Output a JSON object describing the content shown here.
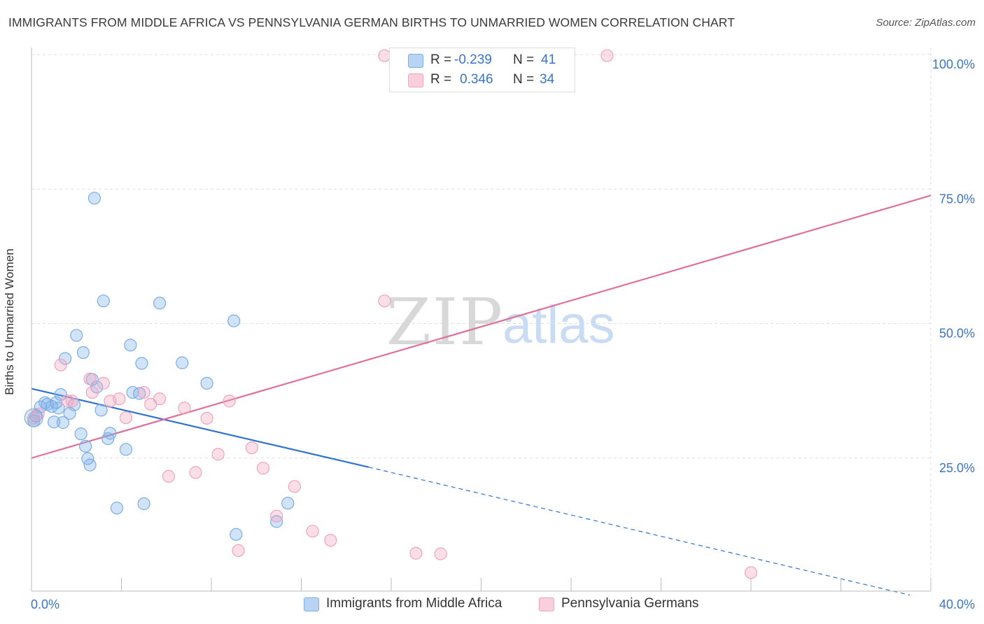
{
  "title": "IMMIGRANTS FROM MIDDLE AFRICA VS PENNSYLVANIA GERMAN BIRTHS TO UNMARRIED WOMEN CORRELATION CHART",
  "source": "Source: ZipAtlas.com",
  "watermark": {
    "zip": "ZIP",
    "atlas": "atlas"
  },
  "legend": {
    "rows": [
      {
        "r_label": "R =",
        "r_value": "-0.239",
        "n_label": "N =",
        "n_value": "41",
        "color": "#7aaee8"
      },
      {
        "r_label": "R =",
        "r_value": "0.346",
        "n_label": "N =",
        "n_value": "34",
        "color": "#f2a3bd"
      }
    ]
  },
  "chart_data": {
    "type": "scatter",
    "xlabel": "",
    "ylabel": "Births to Unmarried Women",
    "xlim": [
      0,
      40
    ],
    "ylim": [
      0,
      100
    ],
    "x_tick_labels": [
      "0.0%",
      "40.0%"
    ],
    "y_tick_labels": [
      "25.0%",
      "50.0%",
      "75.0%",
      "100.0%"
    ],
    "y_ticks": [
      25,
      50,
      75,
      100
    ],
    "grid": true,
    "legend_placement": "bottom",
    "series": [
      {
        "name": "Immigrants from Middle Africa",
        "color": "#7aaee8",
        "line_color": "#2e73d0",
        "trend": {
          "x0": 0,
          "y0": 37.9,
          "x1": 15,
          "y1": 23.3,
          "dashed_to_x": 40,
          "dashed_to_y": -1
        },
        "points": [
          [
            0.2,
            32.8
          ],
          [
            0.4,
            34.5
          ],
          [
            0.6,
            35.3
          ],
          [
            0.7,
            35.0
          ],
          [
            0.9,
            34.6
          ],
          [
            1.0,
            31.7
          ],
          [
            1.1,
            35.3
          ],
          [
            1.2,
            34.3
          ],
          [
            1.3,
            36.8
          ],
          [
            1.4,
            31.6
          ],
          [
            1.5,
            43.5
          ],
          [
            1.7,
            33.3
          ],
          [
            1.9,
            34.9
          ],
          [
            2.0,
            47.8
          ],
          [
            2.2,
            29.5
          ],
          [
            2.3,
            44.6
          ],
          [
            2.4,
            27.2
          ],
          [
            2.5,
            24.9
          ],
          [
            2.6,
            23.7
          ],
          [
            2.7,
            39.6
          ],
          [
            2.8,
            73.3
          ],
          [
            2.9,
            38.2
          ],
          [
            3.1,
            33.9
          ],
          [
            3.2,
            54.2
          ],
          [
            3.4,
            28.6
          ],
          [
            3.5,
            29.6
          ],
          [
            3.8,
            15.7
          ],
          [
            4.2,
            26.6
          ],
          [
            4.4,
            46.0
          ],
          [
            4.5,
            37.2
          ],
          [
            4.8,
            37.0
          ],
          [
            4.9,
            42.6
          ],
          [
            5.0,
            16.5
          ],
          [
            5.7,
            53.8
          ],
          [
            6.7,
            42.7
          ],
          [
            7.8,
            38.9
          ],
          [
            9.0,
            50.5
          ],
          [
            9.1,
            10.8
          ],
          [
            10.9,
            13.2
          ],
          [
            11.4,
            16.6
          ],
          [
            0.1,
            31.9
          ]
        ]
      },
      {
        "name": "Pennsylvania Germans",
        "color": "#f2a3bd",
        "line_color": "#e0709a",
        "trend": {
          "x0": 0,
          "y0": 25.0,
          "x1": 40,
          "y1": 73.8
        },
        "points": [
          [
            0.1,
            32.4
          ],
          [
            0.3,
            33.2
          ],
          [
            1.3,
            42.3
          ],
          [
            1.6,
            35.6
          ],
          [
            1.8,
            35.6
          ],
          [
            2.6,
            39.7
          ],
          [
            2.7,
            37.2
          ],
          [
            3.2,
            38.9
          ],
          [
            3.5,
            35.6
          ],
          [
            3.9,
            36.0
          ],
          [
            4.2,
            32.5
          ],
          [
            5.0,
            37.2
          ],
          [
            5.3,
            35.0
          ],
          [
            5.7,
            36.0
          ],
          [
            6.1,
            21.6
          ],
          [
            6.8,
            34.3
          ],
          [
            7.3,
            22.3
          ],
          [
            7.8,
            32.4
          ],
          [
            8.3,
            25.7
          ],
          [
            8.8,
            35.6
          ],
          [
            9.2,
            7.8
          ],
          [
            9.8,
            26.9
          ],
          [
            10.3,
            23.1
          ],
          [
            10.9,
            14.2
          ],
          [
            11.7,
            19.7
          ],
          [
            12.5,
            11.4
          ],
          [
            13.3,
            9.7
          ],
          [
            15.7,
            99.8
          ],
          [
            15.7,
            54.2
          ],
          [
            17.1,
            7.3
          ],
          [
            18.2,
            7.2
          ],
          [
            22.5,
            99.8
          ],
          [
            25.6,
            99.8
          ],
          [
            32.0,
            3.7
          ]
        ]
      }
    ]
  },
  "bottom_legend": [
    {
      "label": "Immigrants from Middle Africa",
      "color": "#7aaee8"
    },
    {
      "label": "Pennsylvania Germans",
      "color": "#f2a3bd"
    }
  ]
}
